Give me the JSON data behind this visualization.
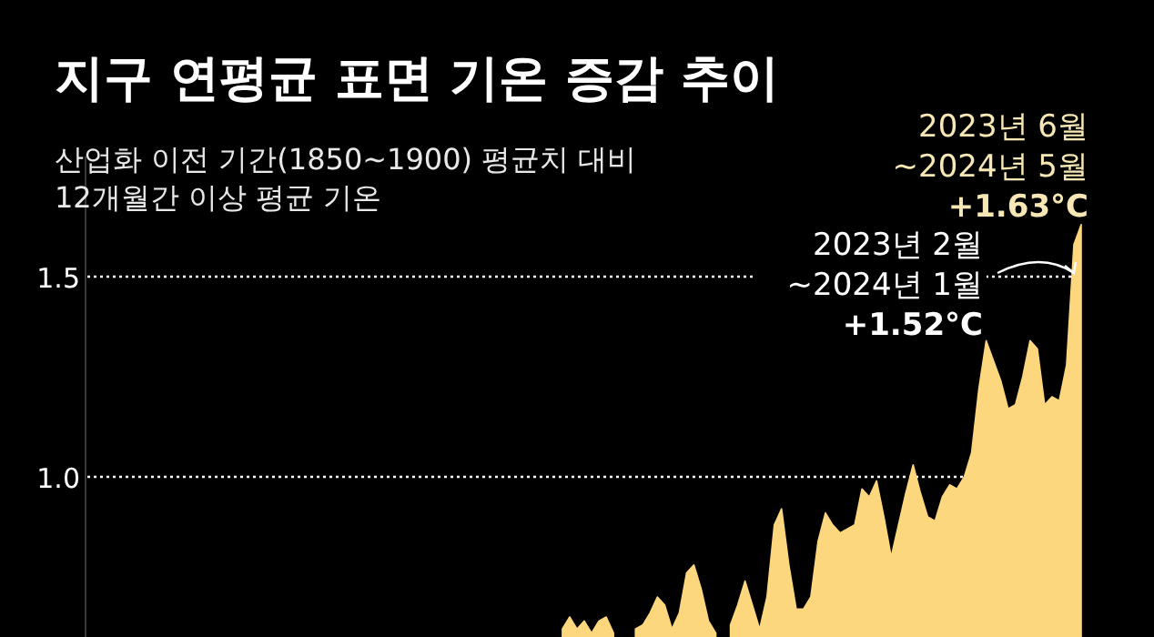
{
  "chart_data": {
    "type": "area",
    "title": "지구 연평균 표면 기온 증감 추이",
    "subtitle": "산업화 이전 기간(1850~1900) 평균치 대비\n12개월간 이상 평균 기온",
    "color": "#fcd77e",
    "categories": [
      null,
      null,
      null,
      null,
      null,
      null,
      null,
      null,
      null,
      null,
      null,
      null,
      null,
      null,
      null,
      null,
      null,
      null,
      null,
      null,
      null,
      null,
      null,
      null,
      null,
      null,
      null,
      null,
      null,
      null,
      null,
      null,
      null,
      null,
      null,
      null,
      null,
      null,
      null,
      null,
      null,
      null,
      null,
      null,
      null,
      null,
      null,
      null,
      null,
      null,
      null,
      null,
      null,
      null,
      null,
      null,
      null,
      null,
      null,
      null,
      null,
      null,
      null,
      null,
      null,
      null,
      null,
      null,
      null,
      null,
      null,
      null,
      null,
      null,
      null,
      null,
      null,
      null,
      null,
      null,
      null,
      null,
      null,
      null,
      null,
      null,
      null,
      null,
      null,
      null,
      null,
      null,
      null,
      null,
      null,
      null,
      null,
      null,
      null,
      null,
      null,
      null,
      null,
      null,
      null,
      null,
      null,
      null,
      null,
      null,
      null,
      null,
      null,
      null,
      null,
      null,
      null,
      null,
      null,
      null,
      null,
      null,
      null,
      null,
      null,
      null,
      null,
      null,
      null,
      null,
      null,
      null,
      null,
      null,
      null,
      null,
      null
    ],
    "values": [
      null,
      null,
      null,
      null,
      null,
      null,
      null,
      null,
      null,
      null,
      null,
      null,
      null,
      null,
      null,
      null,
      null,
      null,
      null,
      null,
      null,
      null,
      null,
      null,
      null,
      null,
      null,
      null,
      null,
      null,
      null,
      null,
      null,
      null,
      null,
      null,
      null,
      null,
      null,
      null,
      null,
      null,
      null,
      null,
      null,
      null,
      null,
      null,
      null,
      null,
      null,
      null,
      null,
      null,
      null,
      null,
      null,
      null,
      null,
      null,
      null,
      null,
      null,
      null,
      null,
      0.62,
      0.65,
      0.62,
      0.64,
      0.61,
      0.64,
      0.65,
      0.61,
      null,
      null,
      0.62,
      0.63,
      0.66,
      0.7,
      0.68,
      0.62,
      0.66,
      0.76,
      0.78,
      0.72,
      0.64,
      0.61,
      null,
      0.63,
      0.68,
      0.74,
      0.68,
      0.62,
      0.7,
      0.88,
      0.92,
      0.78,
      0.67,
      0.67,
      0.7,
      0.84,
      0.91,
      0.88,
      0.86,
      0.87,
      0.88,
      0.97,
      0.95,
      0.99,
      0.9,
      0.8,
      0.88,
      0.96,
      1.03,
      0.96,
      0.9,
      0.89,
      0.95,
      0.98,
      0.97,
      1.0,
      1.06,
      1.22,
      1.34,
      1.29,
      1.24,
      1.17,
      1.18,
      1.25,
      1.34,
      1.32,
      1.18,
      1.2,
      1.19,
      1.28,
      1.58,
      1.63
    ],
    "ylim": [
      0.6,
      1.8
    ],
    "yticks": [
      {
        "value": 1.0,
        "label": "1.0"
      },
      1.5
    ],
    "grid": "y",
    "annotations": [
      "2023년 6월\n~2024년 5월\n+1.63°C",
      "2023년 2월\n~2024년 1월\n+1.52°C"
    ]
  }
}
